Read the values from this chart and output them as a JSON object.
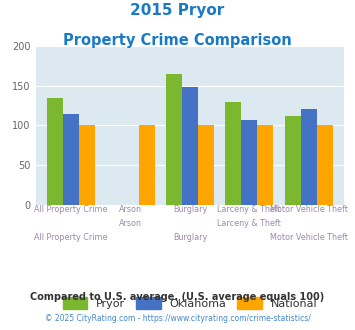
{
  "title_line1": "2015 Pryor",
  "title_line2": "Property Crime Comparison",
  "categories": [
    "All Property Crime",
    "Arson",
    "Burglary",
    "Larceny & Theft",
    "Motor Vehicle Theft"
  ],
  "pryor": [
    135,
    0,
    165,
    129,
    112
  ],
  "oklahoma": [
    115,
    0,
    149,
    107,
    121
  ],
  "national": [
    100,
    100,
    100,
    100,
    100
  ],
  "color_pryor": "#7cb82f",
  "color_oklahoma": "#4472c4",
  "color_national": "#ffa500",
  "bg_chart": "#dce9f0",
  "ylim": [
    0,
    200
  ],
  "yticks": [
    0,
    50,
    100,
    150,
    200
  ],
  "legend_labels": [
    "Pryor",
    "Oklahoma",
    "National"
  ],
  "footer1": "Compared to U.S. average. (U.S. average equals 100)",
  "footer2": "© 2025 CityRating.com - https://www.cityrating.com/crime-statistics/",
  "title_color": "#1a7ac7",
  "xtick_color": "#9b8aaa",
  "ytick_color": "#666666",
  "footer1_color": "#333333",
  "footer2_color": "#4488cc"
}
